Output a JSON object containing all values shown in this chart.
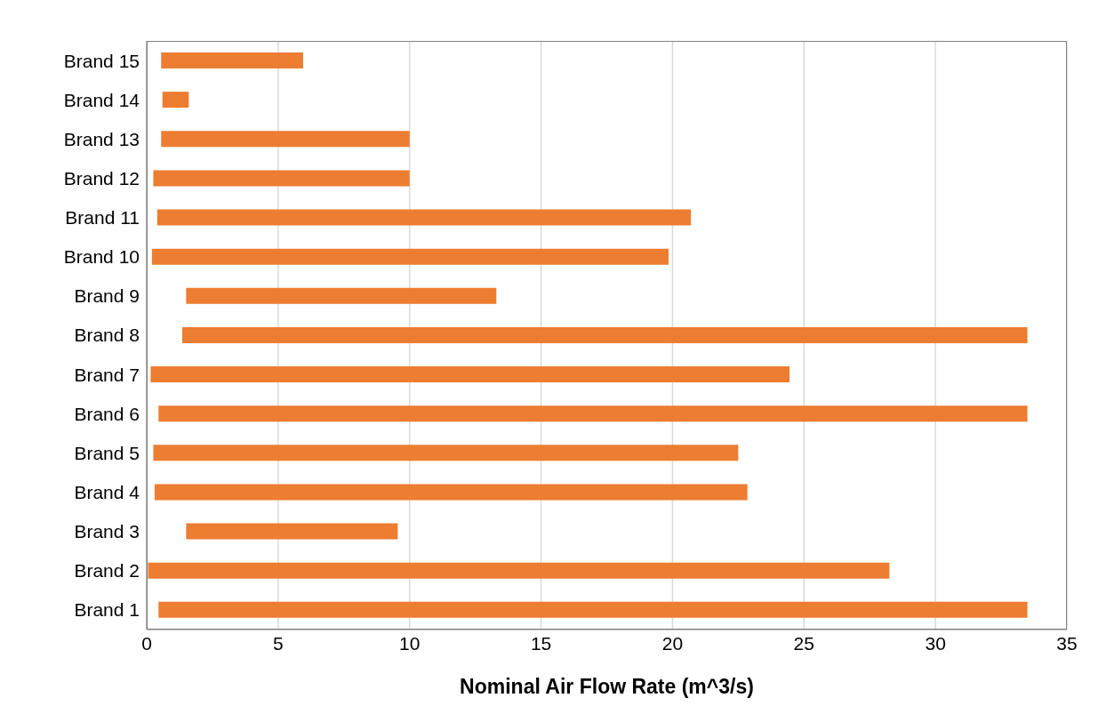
{
  "chart_data": {
    "type": "bar",
    "orientation": "horizontal",
    "xlabel": "Nominal Air Flow Rate (m^3/s)",
    "categories": [
      "Brand 15",
      "Brand 14",
      "Brand 13",
      "Brand 12",
      "Brand 11",
      "Brand 10",
      "Brand 9",
      "Brand 8",
      "Brand 7",
      "Brand 6",
      "Brand 5",
      "Brand 4",
      "Brand 3",
      "Brand 2",
      "Brand 1"
    ],
    "base": [
      0.55,
      0.6,
      0.55,
      0.25,
      0.4,
      0.2,
      1.5,
      1.35,
      0.15,
      0.45,
      0.25,
      0.3,
      1.5,
      0.05,
      0.45
    ],
    "values": [
      5.4,
      1.0,
      9.45,
      9.75,
      20.3,
      19.65,
      11.8,
      32.15,
      24.3,
      33.05,
      22.25,
      22.55,
      8.05,
      28.2,
      33.05
    ],
    "color": "#ed7d31",
    "xlim": [
      0,
      35
    ],
    "xticks": [
      0,
      5,
      10,
      15,
      20,
      25,
      30,
      35
    ],
    "grid": "x",
    "legend": false
  }
}
